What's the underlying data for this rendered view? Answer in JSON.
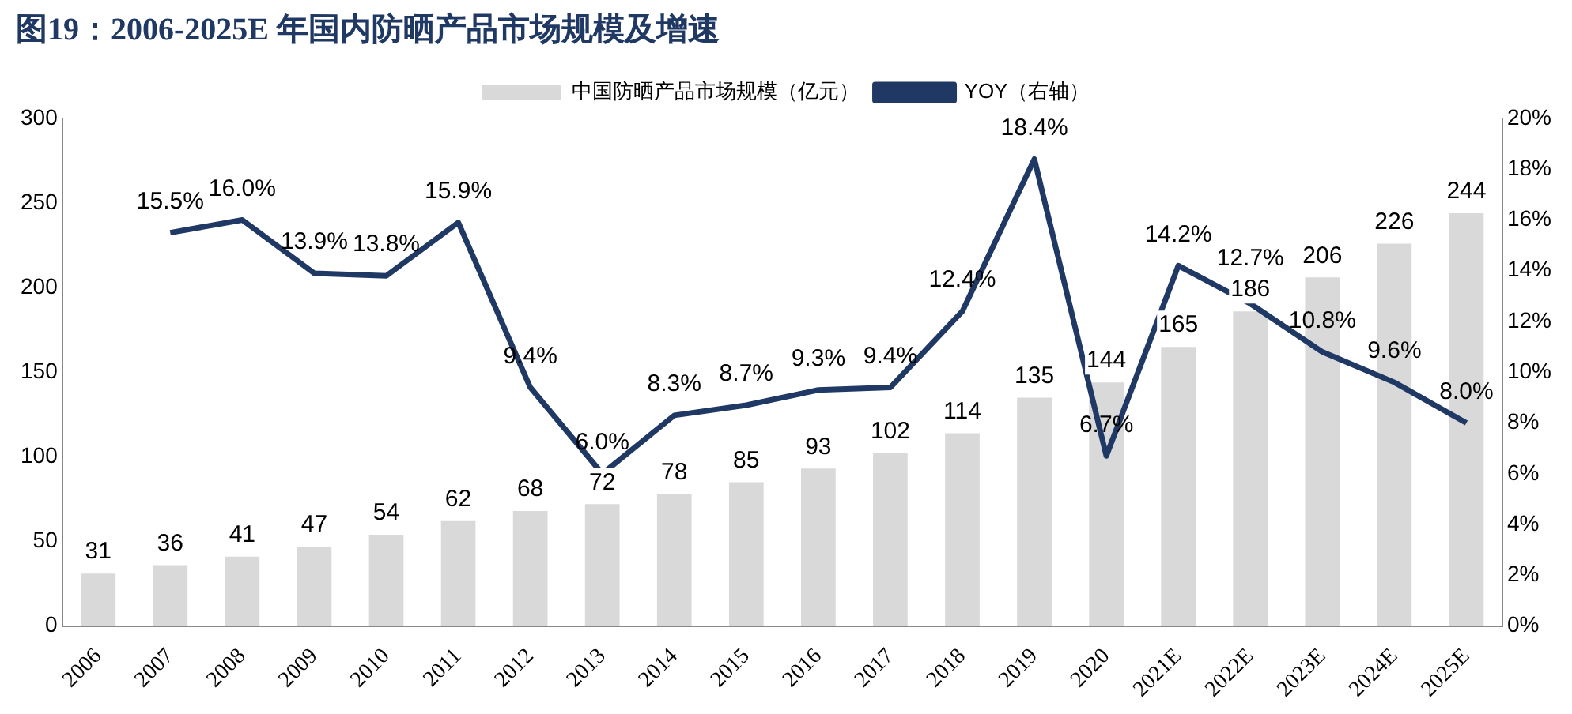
{
  "chart_data": {
    "type": "bar",
    "title": "图19：2006-2025E 年国内防晒产品市场规模及增速",
    "categories": [
      "2006",
      "2007",
      "2008",
      "2009",
      "2010",
      "2011",
      "2012",
      "2013",
      "2014",
      "2015",
      "2016",
      "2017",
      "2018",
      "2019",
      "2020",
      "2021E",
      "2022E",
      "2023E",
      "2024E",
      "2025E"
    ],
    "series": [
      {
        "name": "中国防晒产品市场规模（亿元）",
        "color": "#d9d9d9",
        "values": [
          31,
          36,
          41,
          47,
          54,
          62,
          68,
          72,
          78,
          85,
          93,
          102,
          114,
          135,
          144,
          165,
          186,
          206,
          226,
          244
        ],
        "value_labels": [
          "31",
          "36",
          "41",
          "47",
          "54",
          "62",
          "68",
          "72",
          "78",
          "85",
          "93",
          "102",
          "114",
          "135",
          "144",
          "165",
          "186",
          "206",
          "226",
          "244"
        ]
      },
      {
        "name": "YOY（右轴）",
        "type": "line",
        "axis": "y2",
        "color": "#1f3864",
        "values": [
          null,
          15.5,
          16.0,
          13.9,
          13.8,
          15.9,
          9.4,
          6.0,
          8.3,
          8.7,
          9.3,
          9.4,
          12.4,
          18.4,
          6.7,
          14.2,
          12.7,
          10.8,
          9.6,
          8.0
        ],
        "value_labels": [
          null,
          "15.5%",
          "16.0%",
          "13.9%",
          "13.8%",
          "15.9%",
          "9.4%",
          "6.0%",
          "8.3%",
          "8.7%",
          "9.3%",
          "9.4%",
          "12.4%",
          "18.4%",
          "6.7%",
          "14.2%",
          "12.7%",
          "10.8%",
          "9.6%",
          "8.0%"
        ]
      }
    ],
    "ylim": [
      0,
      300
    ],
    "yticks": [
      0,
      50,
      100,
      150,
      200,
      250,
      300
    ],
    "y2lim": [
      0,
      20
    ],
    "y2ticks": [
      {
        "value": 0,
        "label": "0%"
      },
      {
        "value": 2,
        "label": "2%"
      },
      {
        "value": 4,
        "label": "4%"
      },
      {
        "value": 6,
        "label": "6%"
      },
      {
        "value": 8,
        "label": "8%"
      },
      {
        "value": 10,
        "label": "10%"
      },
      {
        "value": 12,
        "label": "12%"
      },
      {
        "value": 14,
        "label": "14%"
      },
      {
        "value": 16,
        "label": "16%"
      },
      {
        "value": 18,
        "label": "18%"
      },
      {
        "value": 20,
        "label": "20%"
      }
    ],
    "grid": false,
    "legend": "top",
    "marker": "none",
    "line_style": "solid"
  }
}
